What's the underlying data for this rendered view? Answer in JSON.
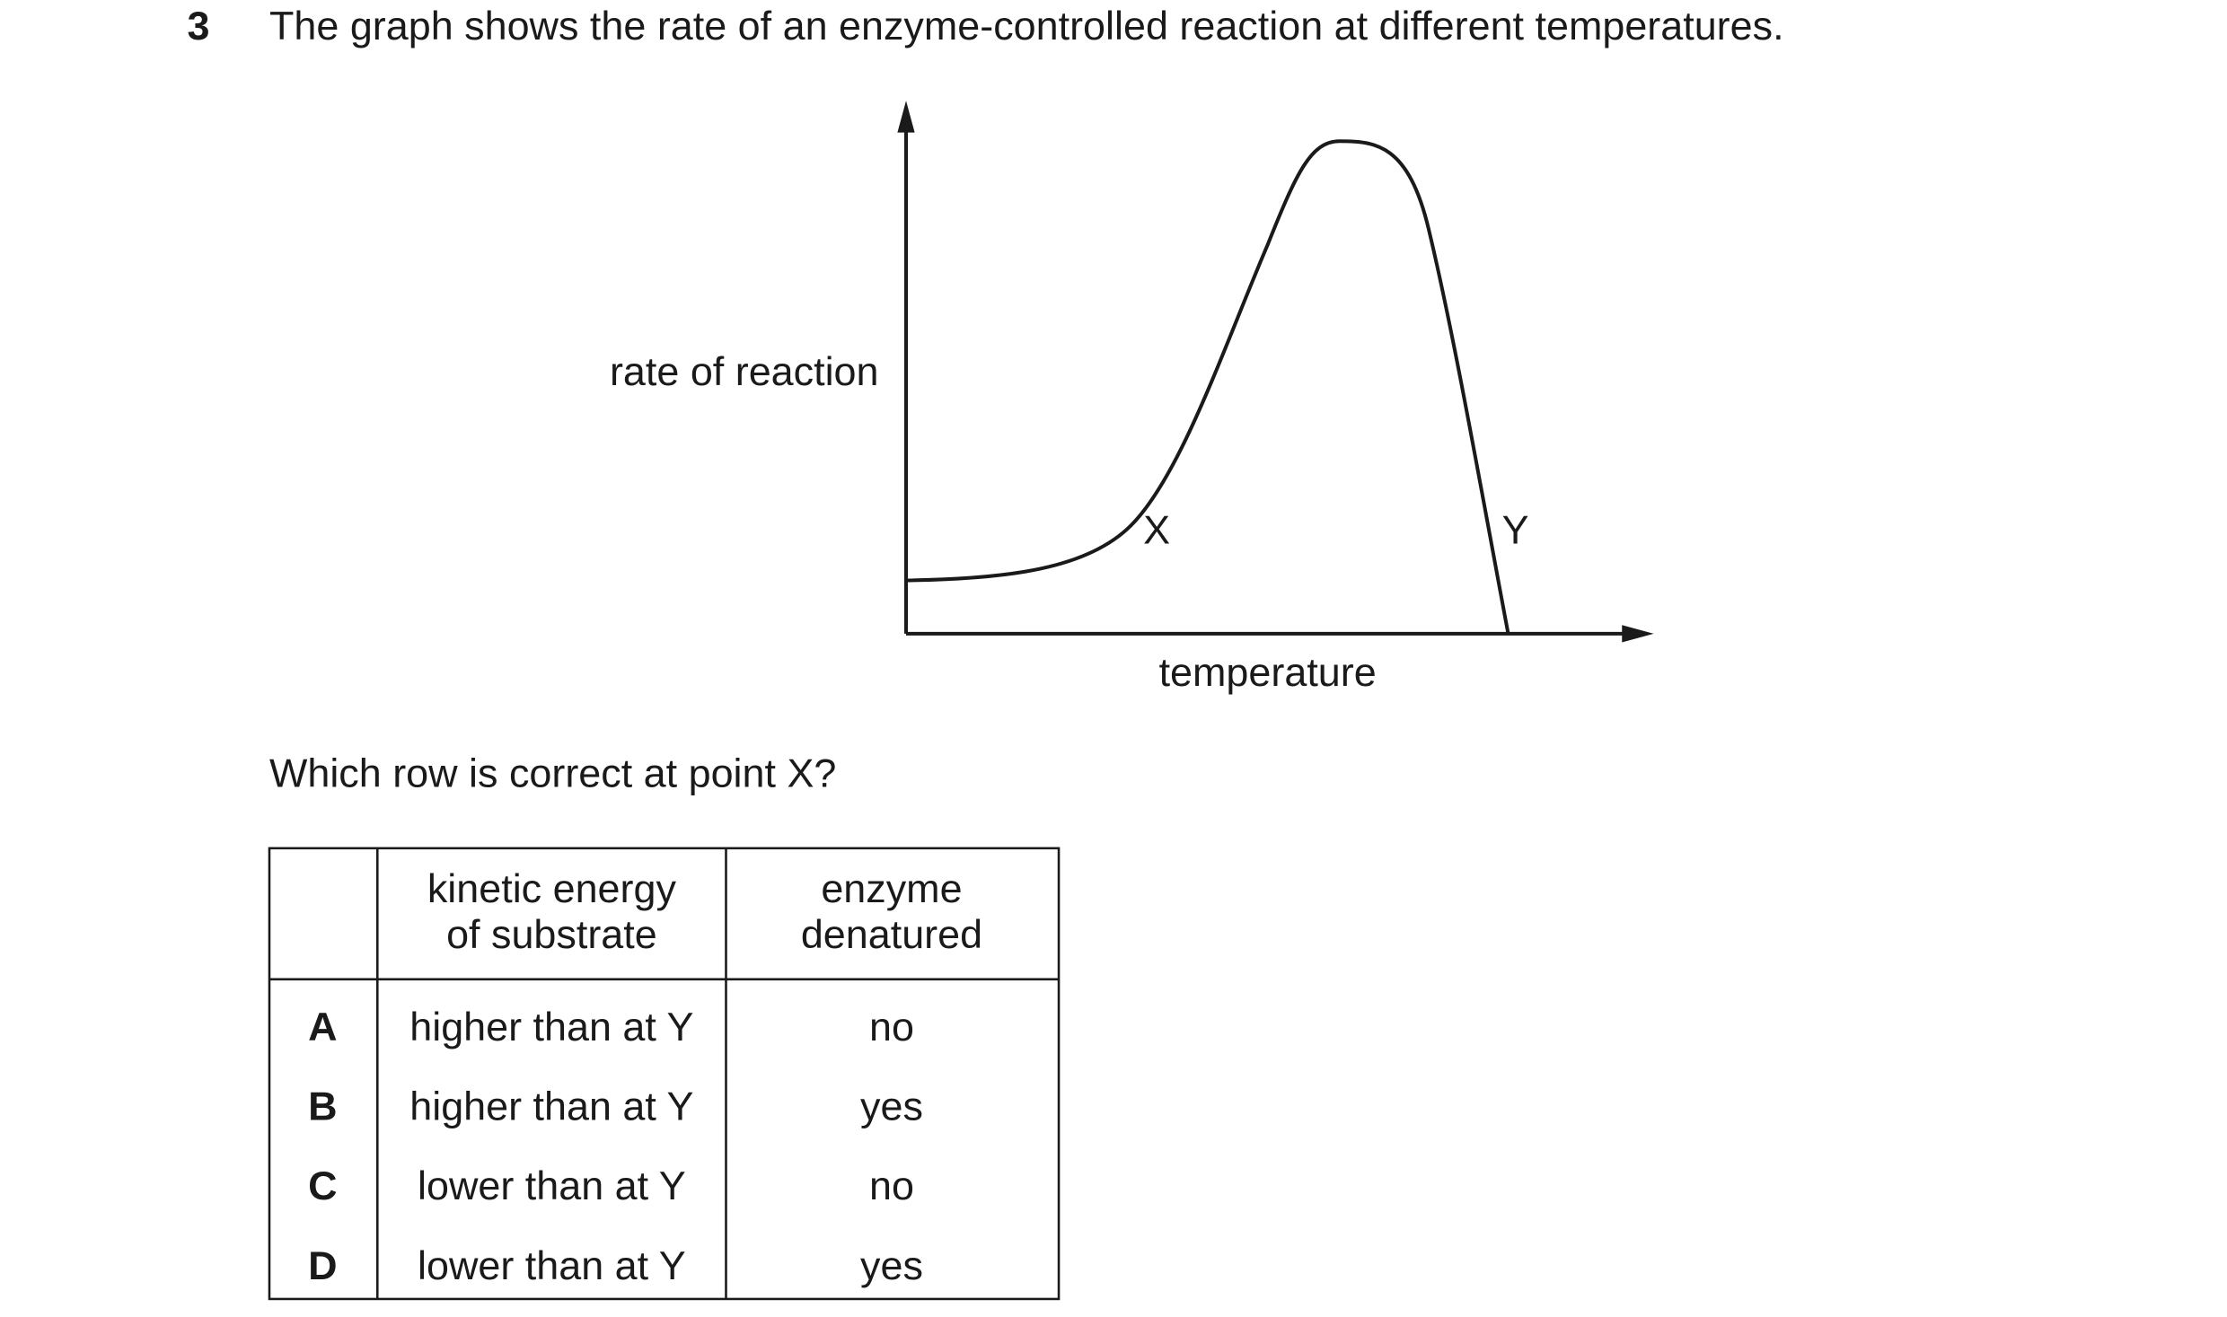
{
  "question": {
    "number": "3",
    "text": "The graph shows the rate of an enzyme-controlled reaction at different temperatures."
  },
  "graph": {
    "y_label": "rate of reaction",
    "x_label": "temperature",
    "points": [
      "X",
      "Y"
    ]
  },
  "prompt": "Which row is correct at point X?",
  "table": {
    "columns": [
      [
        "kinetic energy",
        "of substrate"
      ],
      [
        "enzyme",
        "denatured"
      ]
    ],
    "rows": [
      [
        "A",
        "higher than at Y",
        "no"
      ],
      [
        "B",
        "higher than at Y",
        "yes"
      ],
      [
        "C",
        "lower than at Y",
        "no"
      ],
      [
        "D",
        "lower than at Y",
        "yes"
      ]
    ]
  }
}
